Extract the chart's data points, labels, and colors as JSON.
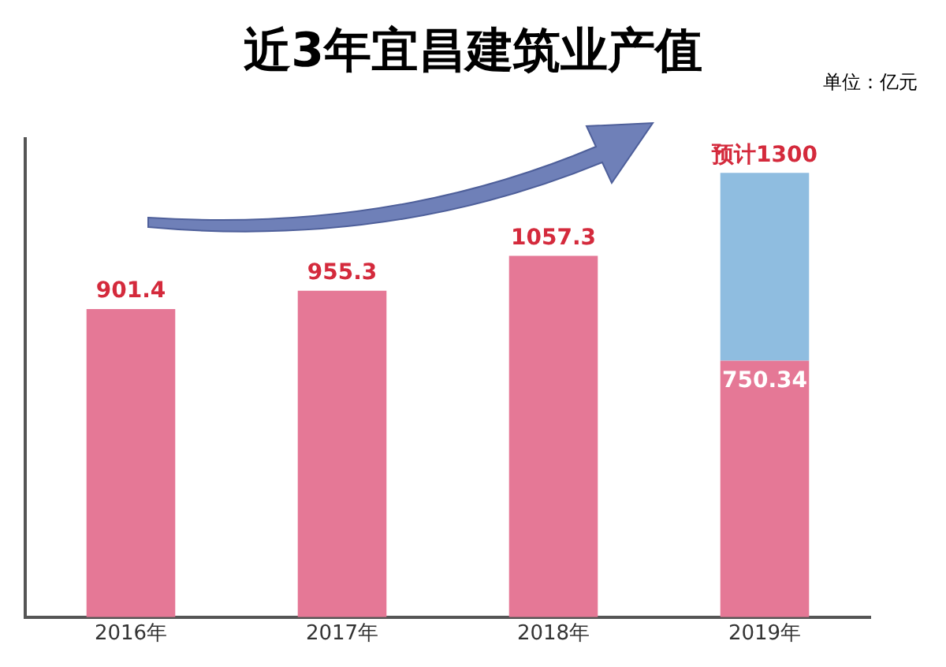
{
  "chart_data": {
    "type": "bar",
    "title": "近3年宜昌建筑业产值",
    "annotations": [
      "单位：亿元"
    ],
    "categories": [
      "2016年",
      "2017年",
      "2018年",
      "2019年"
    ],
    "stacked": true,
    "series": [
      {
        "color": "#e57896",
        "values": [
          901.4,
          955.3,
          1057.3,
          750.34
        ],
        "value_labels": [
          "901.4",
          "955.3",
          "1057.3",
          "750.34"
        ]
      },
      {
        "color": "#8fbde0",
        "values": [
          null,
          null,
          null,
          549.66
        ]
      }
    ],
    "totals": [
      null,
      null,
      null,
      "预计1300"
    ],
    "tick_labels": "x",
    "grid": false,
    "legend": false
  }
}
